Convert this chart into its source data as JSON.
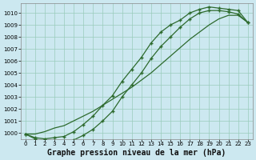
{
  "title": "Graphe pression niveau de la mer (hPa)",
  "background_color": "#cce8f0",
  "grid_color": "#99ccbb",
  "line_color": "#2d6a2d",
  "marker": "+",
  "xlim": [
    -0.5,
    23.5
  ],
  "ylim": [
    999.5,
    1010.8
  ],
  "yticks": [
    1000,
    1001,
    1002,
    1003,
    1004,
    1005,
    1006,
    1007,
    1008,
    1009,
    1010
  ],
  "xticks": [
    0,
    1,
    2,
    3,
    4,
    5,
    6,
    7,
    8,
    9,
    10,
    11,
    12,
    13,
    14,
    15,
    16,
    17,
    18,
    19,
    20,
    21,
    22,
    23
  ],
  "line1_x": [
    0,
    1,
    2,
    3,
    4,
    5,
    6,
    7,
    8,
    9,
    10,
    11,
    12,
    13,
    14,
    15,
    16,
    17,
    18,
    19,
    20,
    21,
    22,
    23
  ],
  "line1_y": [
    999.9,
    999.6,
    999.5,
    999.6,
    999.7,
    1000.1,
    1000.7,
    1001.4,
    1002.3,
    1003.1,
    1004.3,
    1005.3,
    1006.3,
    1007.5,
    1008.4,
    1009.0,
    1009.4,
    1010.0,
    1010.3,
    1010.5,
    1010.4,
    1010.3,
    1010.2,
    1009.2
  ],
  "line2_x": [
    0,
    1,
    2,
    3,
    4,
    5,
    6,
    7,
    8,
    9,
    10,
    11,
    12,
    13,
    14,
    15,
    16,
    17,
    18,
    19,
    20,
    21,
    22,
    23
  ],
  "line2_y": [
    999.9,
    999.5,
    999.3,
    999.2,
    999.2,
    999.4,
    999.8,
    1000.3,
    1001.0,
    1001.8,
    1003.0,
    1004.0,
    1005.0,
    1006.2,
    1007.2,
    1008.0,
    1008.8,
    1009.5,
    1010.0,
    1010.2,
    1010.2,
    1010.1,
    1009.9,
    1009.2
  ],
  "line3_x": [
    0,
    1,
    2,
    3,
    4,
    5,
    6,
    7,
    8,
    9,
    10,
    11,
    12,
    13,
    14,
    15,
    16,
    17,
    18,
    19,
    20,
    21,
    22,
    23
  ],
  "line3_y": [
    999.9,
    999.9,
    1000.1,
    1000.4,
    1000.6,
    1001.0,
    1001.4,
    1001.8,
    1002.3,
    1002.8,
    1003.3,
    1003.8,
    1004.4,
    1005.0,
    1005.7,
    1006.4,
    1007.1,
    1007.8,
    1008.4,
    1009.0,
    1009.5,
    1009.8,
    1009.8,
    1009.2
  ],
  "title_fontsize": 7,
  "tick_fontsize": 5
}
